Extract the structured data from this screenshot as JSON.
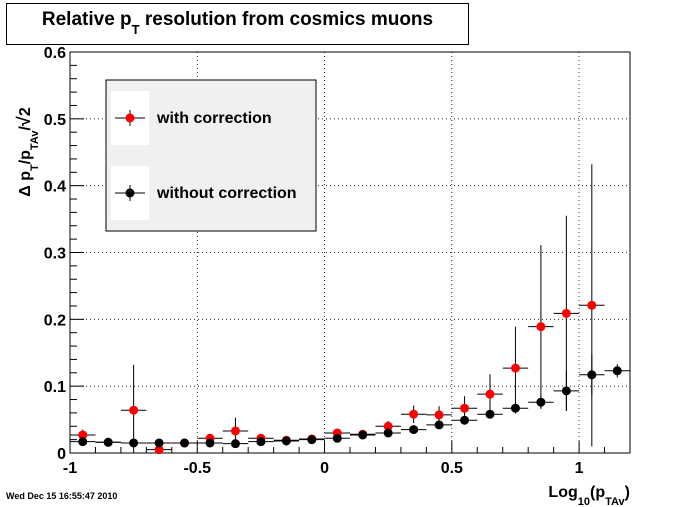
{
  "chart_data": {
    "type": "scatter",
    "title": "Relative p_T resolution from cosmics muons",
    "title_parts": {
      "pre": "Relative p",
      "sub": "T",
      "post": " resolution from cosmics muons"
    },
    "xlabel": "Log10(pTAv)",
    "xlabel_parts": {
      "pre": "Log",
      "sub1": "10",
      "mid": "(p",
      "sub2": "TAv",
      "post": ")"
    },
    "ylabel": "Δ pT/pTAv/√2",
    "ylabel_parts": {
      "pre": "Δ p",
      "sub1": "T",
      "mid": "/p",
      "sub2": "TAv",
      "post": "/",
      "root": "2"
    },
    "xlim": [
      -1,
      1.2
    ],
    "ylim": [
      0,
      0.6
    ],
    "xticks": [
      -1,
      -0.5,
      0,
      0.5,
      1
    ],
    "xtick_labels": [
      "-1",
      "-0.5",
      "0",
      "0.5",
      "1"
    ],
    "yticks": [
      0,
      0.1,
      0.2,
      0.3,
      0.4,
      0.5,
      0.6
    ],
    "ytick_labels": [
      "0",
      "0.1",
      "0.2",
      "0.3",
      "0.4",
      "0.5",
      "0.6"
    ],
    "grid": true,
    "legend_position": "top-left",
    "series": [
      {
        "name": "with correction",
        "color": "#ff0000",
        "x_err": 0.05,
        "points": [
          {
            "x": -0.95,
            "y": 0.027,
            "yerr": 0.008
          },
          {
            "x": -0.85,
            "y": 0.016,
            "yerr": 0.003
          },
          {
            "x": -0.75,
            "y": 0.064,
            "yerr": 0.068
          },
          {
            "x": -0.65,
            "y": 0.005,
            "yerr": 0.003
          },
          {
            "x": -0.55,
            "y": 0.015,
            "yerr": 0.002
          },
          {
            "x": -0.45,
            "y": 0.022,
            "yerr": 0.006
          },
          {
            "x": -0.35,
            "y": 0.033,
            "yerr": 0.02
          },
          {
            "x": -0.25,
            "y": 0.022,
            "yerr": 0.004
          },
          {
            "x": -0.15,
            "y": 0.019,
            "yerr": 0.003
          },
          {
            "x": -0.05,
            "y": 0.021,
            "yerr": 0.003
          },
          {
            "x": 0.05,
            "y": 0.03,
            "yerr": 0.006
          },
          {
            "x": 0.15,
            "y": 0.028,
            "yerr": 0.004
          },
          {
            "x": 0.25,
            "y": 0.04,
            "yerr": 0.008
          },
          {
            "x": 0.35,
            "y": 0.058,
            "yerr": 0.013
          },
          {
            "x": 0.45,
            "y": 0.057,
            "yerr": 0.013
          },
          {
            "x": 0.55,
            "y": 0.067,
            "yerr": 0.018
          },
          {
            "x": 0.65,
            "y": 0.088,
            "yerr": 0.03
          },
          {
            "x": 0.75,
            "y": 0.127,
            "yerr": 0.062
          },
          {
            "x": 0.85,
            "y": 0.189,
            "yerr": 0.122
          },
          {
            "x": 0.95,
            "y": 0.209,
            "yerr": 0.146
          },
          {
            "x": 1.05,
            "y": 0.221,
            "yerr": 0.211
          }
        ]
      },
      {
        "name": "without correction",
        "color": "#000000",
        "x_err": 0.05,
        "points": [
          {
            "x": -0.95,
            "y": 0.017,
            "yerr": 0.003
          },
          {
            "x": -0.85,
            "y": 0.016,
            "yerr": 0.002
          },
          {
            "x": -0.75,
            "y": 0.015,
            "yerr": 0.002
          },
          {
            "x": -0.65,
            "y": 0.015,
            "yerr": 0.002
          },
          {
            "x": -0.55,
            "y": 0.015,
            "yerr": 0.002
          },
          {
            "x": -0.45,
            "y": 0.015,
            "yerr": 0.002
          },
          {
            "x": -0.35,
            "y": 0.014,
            "yerr": 0.002
          },
          {
            "x": -0.25,
            "y": 0.017,
            "yerr": 0.002
          },
          {
            "x": -0.15,
            "y": 0.018,
            "yerr": 0.002
          },
          {
            "x": -0.05,
            "y": 0.02,
            "yerr": 0.002
          },
          {
            "x": 0.05,
            "y": 0.022,
            "yerr": 0.002
          },
          {
            "x": 0.15,
            "y": 0.027,
            "yerr": 0.003
          },
          {
            "x": 0.25,
            "y": 0.03,
            "yerr": 0.003
          },
          {
            "x": 0.35,
            "y": 0.035,
            "yerr": 0.003
          },
          {
            "x": 0.45,
            "y": 0.042,
            "yerr": 0.004
          },
          {
            "x": 0.55,
            "y": 0.049,
            "yerr": 0.005
          },
          {
            "x": 0.65,
            "y": 0.058,
            "yerr": 0.006
          },
          {
            "x": 0.75,
            "y": 0.067,
            "yerr": 0.008
          },
          {
            "x": 0.85,
            "y": 0.076,
            "yerr": 0.01
          },
          {
            "x": 0.95,
            "y": 0.093,
            "yerr": 0.03
          },
          {
            "x": 1.05,
            "y": 0.117,
            "yerr": 0.03
          },
          {
            "x": 1.15,
            "y": 0.123,
            "yerr": 0.01
          }
        ]
      }
    ]
  },
  "footer": {
    "timestamp": "Wed Dec 15 16:55:47 2010"
  }
}
